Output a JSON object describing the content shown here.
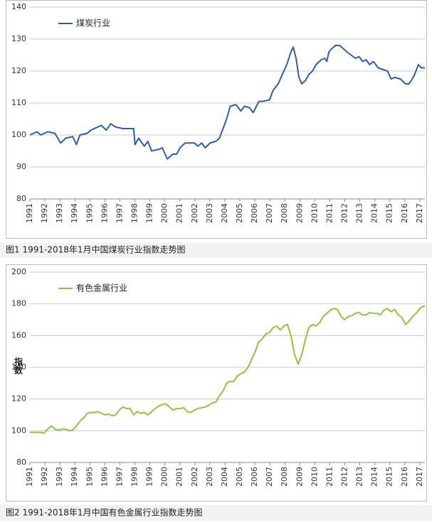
{
  "chart_data": [
    {
      "type": "line",
      "caption": "图1 1991-2018年1月中国煤炭行业指数走势图",
      "x": [
        1991.0,
        1991.48,
        1991.72,
        1992.19,
        1992.67,
        1993.05,
        1993.39,
        1993.86,
        1994.1,
        1994.34,
        1994.82,
        1995.06,
        1995.53,
        1995.77,
        1996.1,
        1996.39,
        1996.72,
        1997.2,
        1997.92,
        1998.01,
        1998.25,
        1998.63,
        1998.87,
        1999.11,
        1999.59,
        1999.83,
        2000.16,
        2000.54,
        2000.78,
        2001.02,
        2001.35,
        2001.97,
        2002.21,
        2002.45,
        2002.69,
        2003.02,
        2003.4,
        2003.64,
        2003.88,
        2004.12,
        2004.36,
        2004.74,
        2005.07,
        2005.31,
        2005.65,
        2005.89,
        2006.27,
        2006.51,
        2006.98,
        2007.22,
        2007.56,
        2007.84,
        2008.13,
        2008.41,
        2008.56,
        2008.75,
        2008.94,
        2009.13,
        2009.37,
        2009.61,
        2009.85,
        2010.08,
        2010.42,
        2010.66,
        2010.8,
        2010.94,
        2011.13,
        2011.37,
        2011.66,
        2011.9,
        2012.14,
        2012.42,
        2012.71,
        2012.95,
        2013.19,
        2013.42,
        2013.66,
        2013.9,
        2014.23,
        2014.52,
        2014.85,
        2015.09,
        2015.33,
        2015.71,
        2016.05,
        2016.29,
        2016.62,
        2016.91,
        2017.1,
        2017.34
      ],
      "series": [
        {
          "name": "煤炭行业",
          "color": "#2e5ea8",
          "values": [
            100,
            101,
            100,
            101,
            100.5,
            97.5,
            99,
            99.5,
            97,
            100,
            100.5,
            101.5,
            102.5,
            103,
            101.5,
            103.5,
            102.5,
            102,
            102,
            97,
            99,
            96.5,
            98,
            95,
            95.5,
            96,
            92.5,
            94,
            94,
            96,
            97.5,
            97.5,
            96.5,
            97.5,
            96,
            97.5,
            98,
            99,
            102,
            105,
            109,
            109.5,
            107.5,
            109,
            108.5,
            107,
            110.5,
            110.5,
            111,
            114,
            116,
            119,
            122,
            126,
            127.5,
            124,
            118,
            116,
            117,
            119,
            120,
            122,
            123.5,
            124,
            123,
            126,
            127,
            128,
            128,
            127,
            126,
            125,
            124,
            124.5,
            123,
            123.5,
            122,
            123,
            121,
            120.5,
            120,
            117.5,
            118,
            117.5,
            116,
            116,
            118.5,
            122,
            121,
            121
          ]
        }
      ],
      "xlim": [
        1991,
        2017.34
      ],
      "xticks": [
        1991,
        1992,
        1993,
        1994,
        1995,
        1996,
        1997,
        1998,
        1999,
        2000,
        2001,
        2002,
        2003,
        2004,
        2005,
        2006,
        2007,
        2008,
        2009,
        2010,
        2011,
        2012,
        2013,
        2014,
        2015,
        2016,
        2017
      ],
      "ylim": [
        80,
        140
      ],
      "yticks": [
        80,
        90,
        100,
        110,
        120,
        130,
        140
      ],
      "grid": true,
      "legend": "upper left"
    },
    {
      "type": "line",
      "caption": "图2 1991-2018年1月中国有色金属行业指数走势图",
      "ylabel": "指数",
      "x": [
        1991.0,
        1991.24,
        1991.48,
        1991.72,
        1991.95,
        1992.19,
        1992.43,
        1992.67,
        1992.91,
        1993.15,
        1993.39,
        1993.62,
        1993.86,
        1994.1,
        1994.34,
        1994.58,
        1994.82,
        1995.05,
        1995.29,
        1995.53,
        1995.77,
        1996.01,
        1996.25,
        1996.49,
        1996.72,
        1996.96,
        1997.2,
        1997.44,
        1997.68,
        1997.92,
        1998.16,
        1998.39,
        1998.63,
        1998.87,
        1999.11,
        1999.35,
        1999.59,
        1999.82,
        2000.06,
        2000.3,
        2000.54,
        2000.78,
        2001.02,
        2001.26,
        2001.49,
        2001.73,
        2001.97,
        2002.21,
        2002.45,
        2002.69,
        2002.93,
        2003.16,
        2003.4,
        2003.64,
        2003.88,
        2004.12,
        2004.36,
        2004.59,
        2004.83,
        2005.07,
        2005.31,
        2005.55,
        2005.79,
        2006.03,
        2006.26,
        2006.5,
        2006.74,
        2006.98,
        2007.22,
        2007.46,
        2007.7,
        2007.93,
        2008.17,
        2008.41,
        2008.65,
        2008.89,
        2009.13,
        2009.36,
        2009.6,
        2009.84,
        2010.08,
        2010.32,
        2010.56,
        2010.8,
        2011.03,
        2011.27,
        2011.51,
        2011.75,
        2011.99,
        2012.23,
        2012.46,
        2012.7,
        2012.94,
        2013.18,
        2013.42,
        2013.66,
        2013.9,
        2014.13,
        2014.37,
        2014.61,
        2014.85,
        2015.09,
        2015.33,
        2015.56,
        2015.8,
        2016.04,
        2016.28,
        2016.52,
        2016.76,
        2017.0,
        2017.23,
        2017.34
      ],
      "series": [
        {
          "name": "有色金属行业",
          "color": "#8dc63f",
          "values": [
            99,
            99,
            99,
            99,
            98.5,
            101,
            103,
            101,
            100.5,
            101,
            101,
            100,
            100.5,
            103,
            106,
            108,
            111,
            111.5,
            111.5,
            112,
            111,
            110,
            110.5,
            109.5,
            110,
            113,
            115,
            114,
            114,
            110,
            112,
            111,
            111.5,
            110,
            112,
            114,
            115.5,
            116.5,
            117,
            115,
            113,
            114,
            114,
            114.5,
            112,
            111.5,
            113,
            114,
            114.5,
            115,
            116,
            117.5,
            118,
            122,
            125,
            130,
            131,
            131,
            134.5,
            136,
            137,
            140,
            145,
            150,
            156,
            158,
            161,
            162,
            165,
            166,
            163.5,
            166,
            167,
            160,
            148,
            142,
            148,
            157,
            165,
            167,
            166,
            168,
            172,
            174,
            176,
            177,
            176.5,
            172,
            170,
            172,
            172.5,
            174,
            174.5,
            173,
            173,
            174.5,
            174,
            174,
            173,
            176,
            177,
            175,
            176.5,
            173,
            171.5,
            167,
            169,
            172,
            174,
            177,
            178.5,
            178.5
          ]
        }
      ],
      "xlim": [
        1991,
        2017.34
      ],
      "xticks": [
        1991,
        1992,
        1993,
        1994,
        1995,
        1996,
        1997,
        1998,
        1999,
        2000,
        2001,
        2002,
        2003,
        2004,
        2005,
        2006,
        2007,
        2008,
        2009,
        2010,
        2011,
        2012,
        2013,
        2014,
        2015,
        2016,
        2017
      ],
      "ylim": [
        80,
        200
      ],
      "yticks": [
        80,
        100,
        120,
        140,
        160,
        180,
        200
      ],
      "grid": true,
      "legend": "upper left"
    }
  ]
}
